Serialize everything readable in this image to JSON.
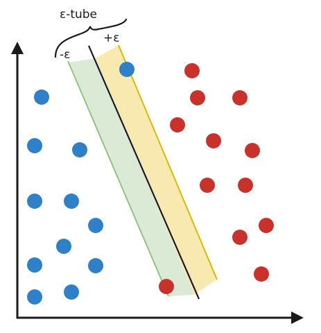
{
  "labels": {
    "tube": "ε-tube",
    "minus_eps": "-ε",
    "plus_eps": "+ε"
  },
  "colors": {
    "blue_point": "#2f7fc9",
    "red_point": "#c8322b",
    "minus_band_fill": "#d6e8cf",
    "minus_band_edge": "#93c47d",
    "plus_band_fill": "#f7e7a8",
    "plus_band_edge": "#d8b900",
    "center_line": "#1a1a2e",
    "axis": "#1a1a1a"
  },
  "points": {
    "blue": [
      [
        60,
        140
      ],
      [
        183,
        100
      ],
      [
        50,
        210
      ],
      [
        115,
        216
      ],
      [
        50,
        290
      ],
      [
        103,
        290
      ],
      [
        138,
        325
      ],
      [
        92,
        355
      ],
      [
        50,
        382
      ],
      [
        138,
        383
      ],
      [
        50,
        428
      ],
      [
        103,
        421
      ]
    ],
    "red": [
      [
        277,
        102
      ],
      [
        285,
        141
      ],
      [
        346,
        141
      ],
      [
        256,
        180
      ],
      [
        308,
        203
      ],
      [
        364,
        217
      ],
      [
        299,
        267
      ],
      [
        354,
        267
      ],
      [
        384,
        325
      ],
      [
        346,
        342
      ],
      [
        377,
        395
      ],
      [
        240,
        413
      ]
    ]
  }
}
